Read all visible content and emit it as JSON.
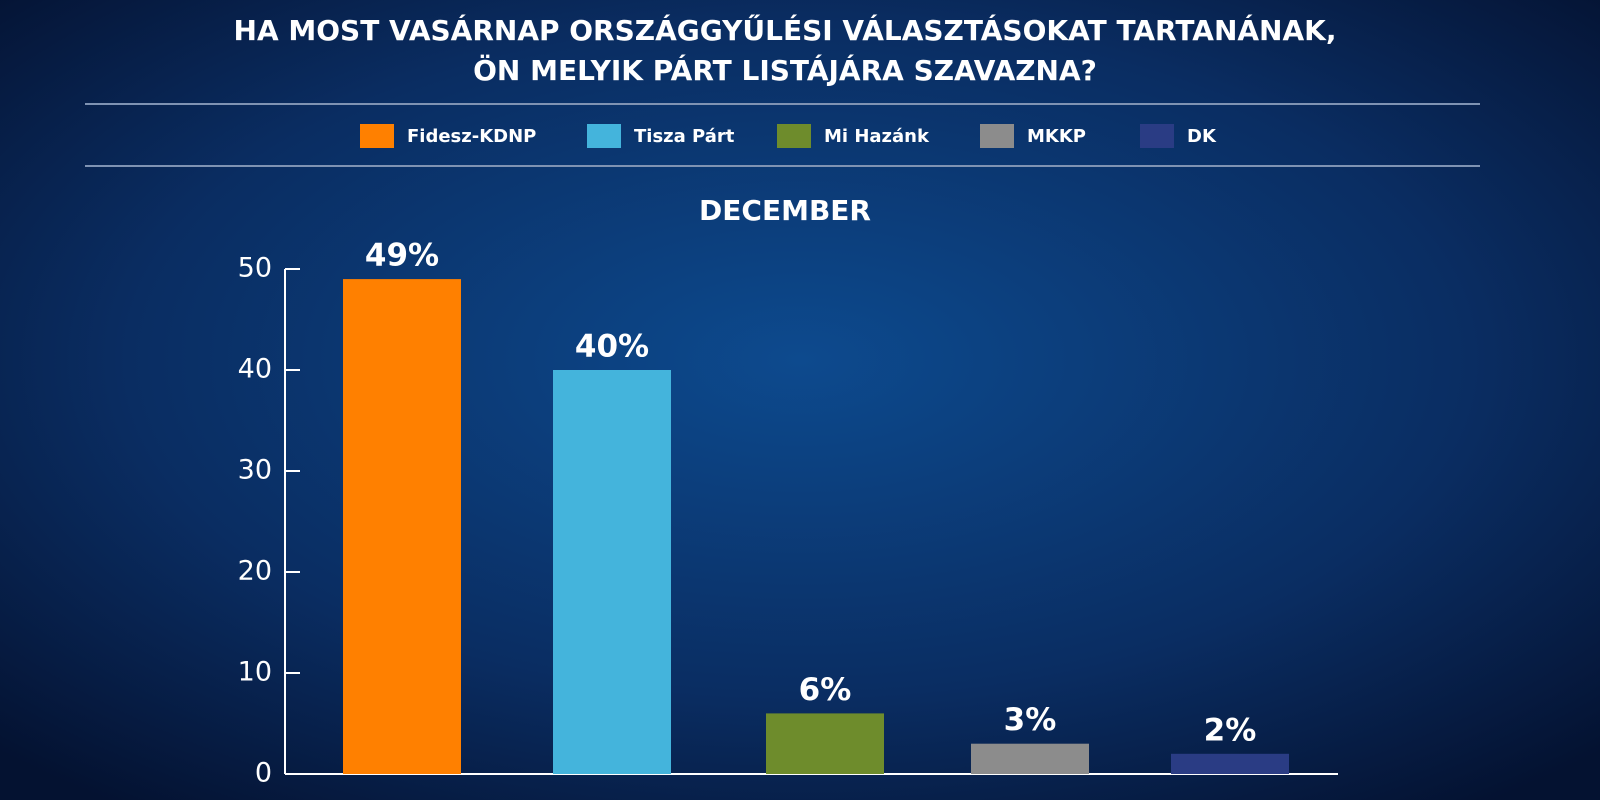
{
  "chart_data": {
    "type": "bar",
    "title": [
      "HA MOST VASÁRNAP ORSZÁGGYŰLÉSI VÁLASZTÁSOKAT TARTANÁNAK,",
      "ÖN MELYIK PÁRT LISTÁJÁRA SZAVAZNA?"
    ],
    "subtitle": "DECEMBER",
    "categories": [
      "Fidesz-KDNP",
      "Tisza Párt",
      "Mi Hazánk",
      "MKKP",
      "DK"
    ],
    "values": [
      49,
      40,
      6,
      3,
      2
    ],
    "value_labels": [
      "49%",
      "40%",
      "6%",
      "3%",
      "2%"
    ],
    "colors": [
      "#ff8000",
      "#44b4dc",
      "#6e8c2c",
      "#8c8c8c",
      "#2a3c84"
    ],
    "ylim": [
      0,
      50
    ],
    "yticks": [
      0,
      10,
      20,
      30,
      40,
      50
    ],
    "legend": "top"
  }
}
